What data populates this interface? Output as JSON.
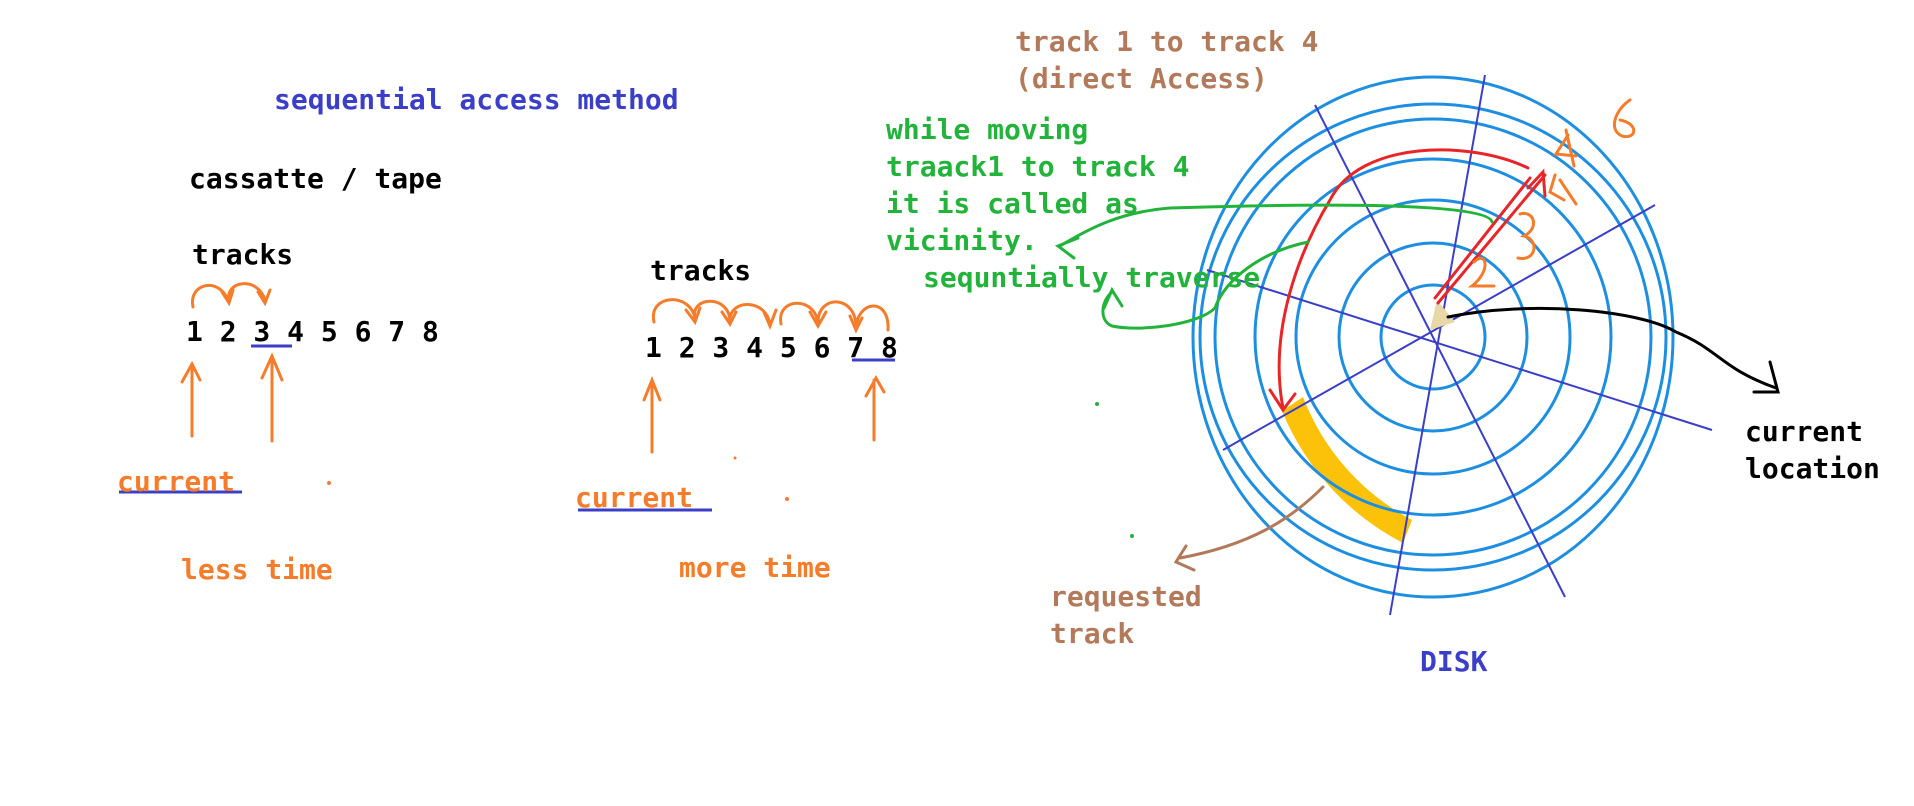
{
  "left": {
    "title": "sequential access method",
    "subtitle": "cassatte / tape",
    "tracks_label": "tracks",
    "numbers": "1 2 3 4 5 6 7 8",
    "current": "current",
    "time": "less time"
  },
  "middle": {
    "tracks_label": "tracks",
    "numbers": "1 2 3 4 5 6 7 8",
    "current": "current",
    "time": "more time"
  },
  "disk": {
    "heading_line1": "track 1 to track 4",
    "heading_line2": "(direct Access)",
    "note_line1": "while moving",
    "note_line2": "traack1 to track 4",
    "note_line3": "it is called as",
    "note_line4": "vicinity.",
    "note_line5": "sequntially traverse",
    "current_location_line1": "current",
    "current_location_line2": "location",
    "requested_line1": "requested",
    "requested_line2": "track",
    "caption": "DISK",
    "handwritten_marks": [
      "6",
      "5",
      "4",
      "3",
      "2"
    ]
  },
  "colors": {
    "title": "#3b3fc8",
    "text": "#000000",
    "arrows": "#f47c2b",
    "note": "#22b33a",
    "heading": "#b27a5a",
    "rings": "#1e8fe0",
    "spokes": "#3b3fc8",
    "highlight": "#fcc20a",
    "jump": "#e8262a"
  }
}
